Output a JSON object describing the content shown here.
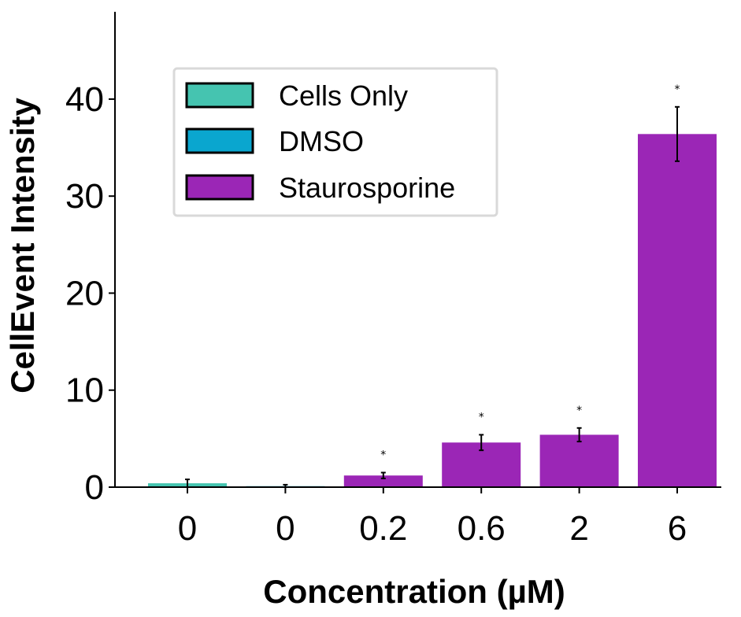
{
  "chart_data": {
    "type": "bar",
    "categories": [
      "0",
      "0",
      "0.2",
      "0.6",
      "2",
      "6"
    ],
    "values": [
      0.4,
      0.1,
      1.2,
      4.6,
      5.4,
      36.4
    ],
    "errors": [
      0.4,
      0.15,
      0.3,
      0.8,
      0.7,
      2.8
    ],
    "groups": [
      "Cells Only",
      "DMSO",
      "Staurosporine",
      "Staurosporine",
      "Staurosporine",
      "Staurosporine"
    ],
    "significance": [
      "",
      "",
      "*",
      "*",
      "*",
      "*"
    ],
    "legend": [
      {
        "name": "Cells Only",
        "color": "#45c4b0"
      },
      {
        "name": "DMSO",
        "color": "#0aa6cf"
      },
      {
        "name": "Staurosporine",
        "color": "#9b26b6"
      }
    ],
    "xlabel": "Concentration (µM)",
    "ylabel": "CellEvent Intensity",
    "ylim": [
      0,
      49
    ],
    "yticks": [
      0,
      10,
      20,
      30,
      40
    ],
    "legend_position": "top-left",
    "grid": false
  }
}
